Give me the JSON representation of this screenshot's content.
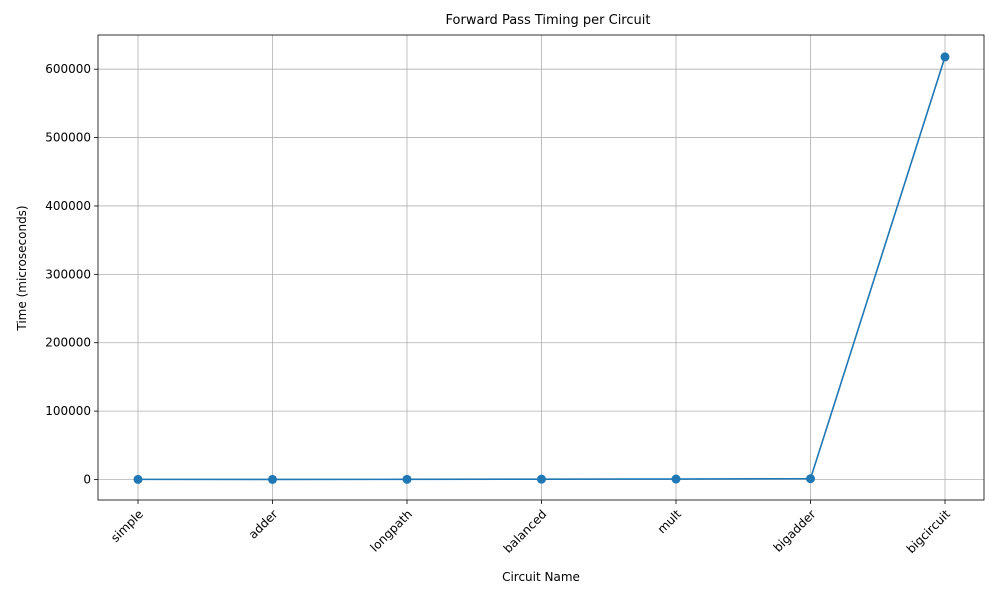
{
  "chart_data": {
    "type": "line",
    "title": "Forward Pass Timing per Circuit",
    "xlabel": "Circuit Name",
    "ylabel": "Time (microseconds)",
    "categories": [
      "simple",
      "adder",
      "longpath",
      "balanced",
      "mult",
      "bigadder",
      "bigcircuit"
    ],
    "series": [
      {
        "values": [
          150,
          120,
          180,
          450,
          650,
          1100,
          618000
        ]
      }
    ],
    "ylim": [
      -30000,
      650000
    ],
    "yticks": [
      0,
      100000,
      200000,
      300000,
      400000,
      500000,
      600000
    ],
    "grid": true,
    "line_color": "#1f77b4"
  }
}
